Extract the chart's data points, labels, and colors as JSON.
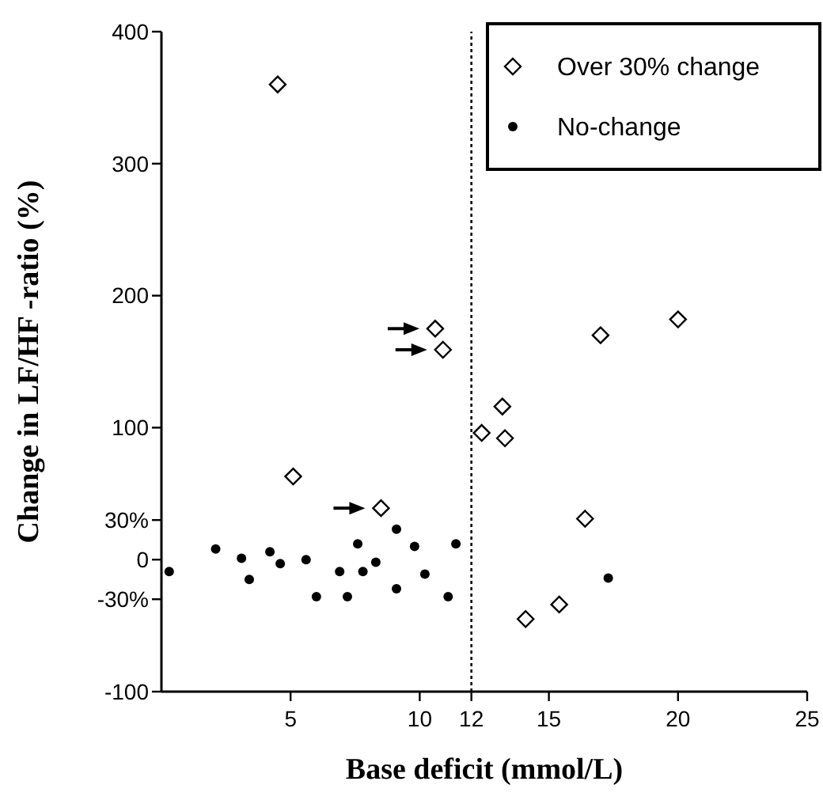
{
  "chart_data": {
    "type": "scatter",
    "xlabel": "Base deficit (mmol/L)",
    "ylabel": "Change in LF/HF -ratio (%)",
    "xlim": [
      0,
      25
    ],
    "xticks": [
      5,
      10,
      12,
      15,
      20,
      25
    ],
    "ylim": [
      -100,
      400
    ],
    "yticks": [
      -100,
      {
        "value": -30,
        "label": "-30%"
      },
      0,
      {
        "value": 30,
        "label": "30%"
      },
      100,
      200,
      300,
      400
    ],
    "series": [
      {
        "name": "Over 30% change",
        "color": "#000000",
        "marker": "diamond",
        "x": [
          4.5,
          10.6,
          10.9,
          17.0,
          20.0,
          5.1,
          8.5,
          12.4,
          13.2,
          13.3,
          16.4,
          15.4,
          14.1
        ],
        "values": [
          360,
          175,
          159,
          170,
          182,
          63,
          39,
          96,
          116,
          92,
          31,
          -34,
          -45
        ]
      },
      {
        "name": "No-change",
        "color": "#000000",
        "marker": "circle",
        "x": [
          0.3,
          2.1,
          3.1,
          3.4,
          4.2,
          4.6,
          5.6,
          6.0,
          6.9,
          7.2,
          7.6,
          7.8,
          8.3,
          9.1,
          9.1,
          9.8,
          10.2,
          11.1,
          11.4,
          17.3
        ],
        "values": [
          -9,
          8,
          1,
          -15,
          6,
          -3,
          0,
          -28,
          -9,
          -28,
          12,
          -9,
          -2,
          23,
          -22,
          10,
          -11,
          -28,
          12,
          -14
        ]
      }
    ],
    "ref_lines": [
      {
        "axis": "x",
        "value": 12,
        "line_style": "dotted",
        "color": "#000000"
      }
    ],
    "legend": "top right",
    "grid": false
  }
}
